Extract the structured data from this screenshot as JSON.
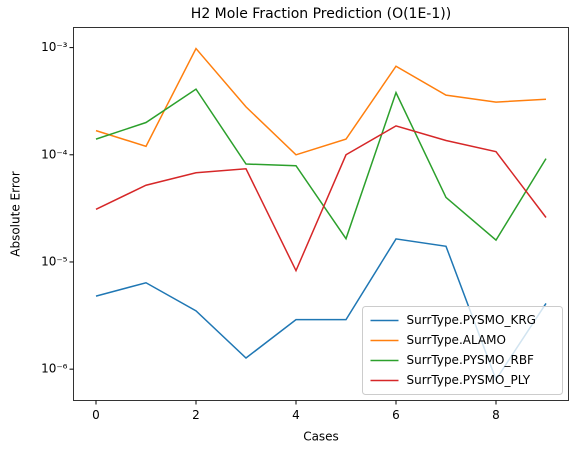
{
  "chart_data": {
    "type": "line",
    "title": "H2 Mole Fraction Prediction (O(1E-1))",
    "x_label": "Cases",
    "y_label": "Absolute Error",
    "x": [
      0,
      1,
      2,
      3,
      4,
      5,
      6,
      7,
      8,
      9
    ],
    "series": [
      {
        "name": "SurrType.PYSMO_KRG",
        "color": "#1f77b4",
        "values": [
          4.8e-06,
          6.4e-06,
          3.5e-06,
          1.27e-06,
          2.9e-06,
          2.9e-06,
          1.64e-05,
          1.4e-05,
          8e-07,
          4.1e-06
        ]
      },
      {
        "name": "SurrType.ALAMO",
        "color": "#ff7f0e",
        "values": [
          0.000168,
          0.00012,
          0.00098,
          0.00028,
          0.0001,
          0.00014,
          0.00067,
          0.00036,
          0.00031,
          0.00033
        ]
      },
      {
        "name": "SurrType.PYSMO_RBF",
        "color": "#2ca02c",
        "values": [
          0.00014,
          0.0002,
          0.00041,
          8.2e-05,
          7.9e-05,
          1.65e-05,
          0.00038,
          4e-05,
          1.6e-05,
          9.2e-05
        ]
      },
      {
        "name": "SurrType.PYSMO_PLY",
        "color": "#d62728",
        "values": [
          3.1e-05,
          5.2e-05,
          6.8e-05,
          7.4e-05,
          8.3e-06,
          0.0001,
          0.000186,
          0.000136,
          0.000107,
          2.6e-05
        ]
      }
    ],
    "xlim": [
      -0.45,
      9.45
    ],
    "xticks": [
      0,
      2,
      4,
      6,
      8
    ],
    "ylim": [
      5.1e-07,
      0.00154
    ],
    "log_y": true,
    "yticks": [
      {
        "value": 1e-06,
        "label": "10⁻⁶"
      },
      {
        "value": 1e-05,
        "label": "10⁻⁵"
      },
      {
        "value": 0.0001,
        "label": "10⁻⁴"
      },
      {
        "value": 0.001,
        "label": "10⁻³"
      }
    ],
    "legend": "lower right"
  }
}
